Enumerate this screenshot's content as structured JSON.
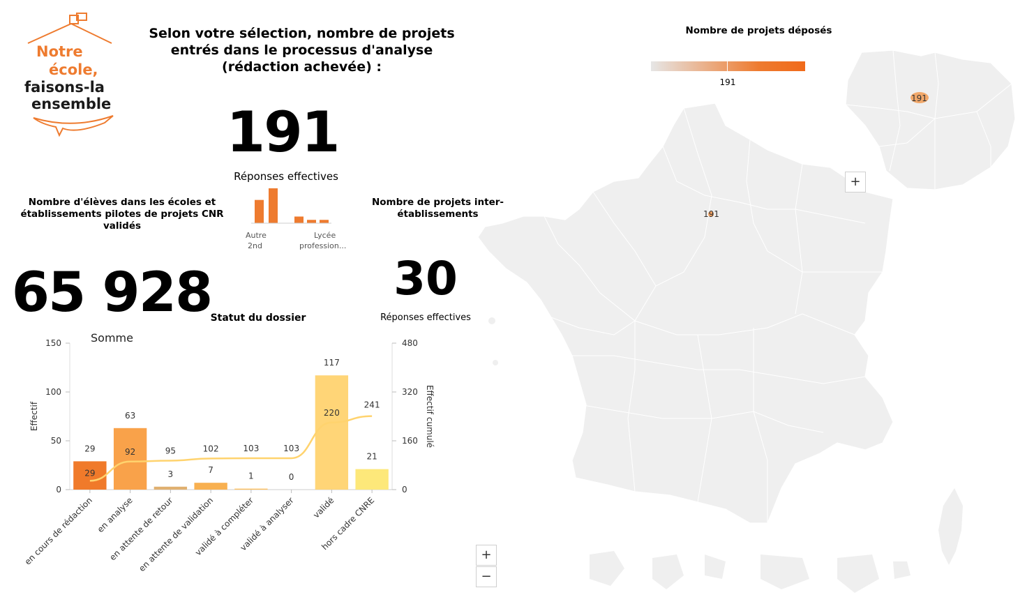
{
  "logo": {
    "line1": "Notre",
    "line2": "école,",
    "line3": "faisons-la",
    "line4": "ensemble",
    "accent_color": "#ee7b2f"
  },
  "header": {
    "title": "Selon votre sélection, nombre de projets entrés dans le processus d'analyse (rédaction achevée) :"
  },
  "kpi_projets": {
    "value": "191",
    "caption": "Réponses effectives"
  },
  "mini_chart": {
    "labels": [
      "Autre 2nd",
      "Lycée profession..."
    ],
    "values": [
      42,
      63,
      0,
      12,
      6,
      6
    ],
    "color": "#ee7b2f"
  },
  "kpi_eleves": {
    "title": "Nombre d'élèves dans les écoles et établissements pilotes de projets CNR validés",
    "value": "65 928"
  },
  "kpi_inter": {
    "title": "Nombre de projets inter-établissements",
    "value": "30",
    "caption": "Réponses effectives"
  },
  "chart_data": {
    "type": "bar",
    "title": "Statut du dossier",
    "subtitle": "Somme",
    "categories": [
      "en cours de rédaction",
      "en analyse",
      "en attente de retour",
      "en attente de validation",
      "validé à compléter",
      "validé à analyser",
      "validé",
      "hors cadre CNRE"
    ],
    "series": [
      {
        "name": "Effectif",
        "values": [
          29,
          63,
          3,
          7,
          1,
          0,
          117,
          21
        ],
        "colors": [
          "#f07a2a",
          "#f9a24a",
          "#e0b070",
          "#f8b050",
          "#ffc060",
          "#ffc870",
          "#ffd577",
          "#fde87a"
        ]
      },
      {
        "name": "Effectif cumulé",
        "type": "line",
        "values": [
          29,
          92,
          95,
          102,
          103,
          103,
          220,
          241
        ],
        "color": "#ffd36e"
      }
    ],
    "ylabel": "Effectif",
    "y2label": "Effectif cumulé",
    "ylim": [
      0,
      150
    ],
    "y2lim": [
      0,
      480
    ],
    "yticks": [
      "0",
      "50",
      "100",
      "150"
    ],
    "y2ticks": [
      "0",
      "160",
      "320",
      "480"
    ]
  },
  "map": {
    "title": "Nombre de projets déposés",
    "legend_value": "191",
    "marker_main": "191",
    "marker_inset": "191",
    "zoom_in": "+",
    "zoom_out": "−",
    "zoom_inset": "+"
  }
}
